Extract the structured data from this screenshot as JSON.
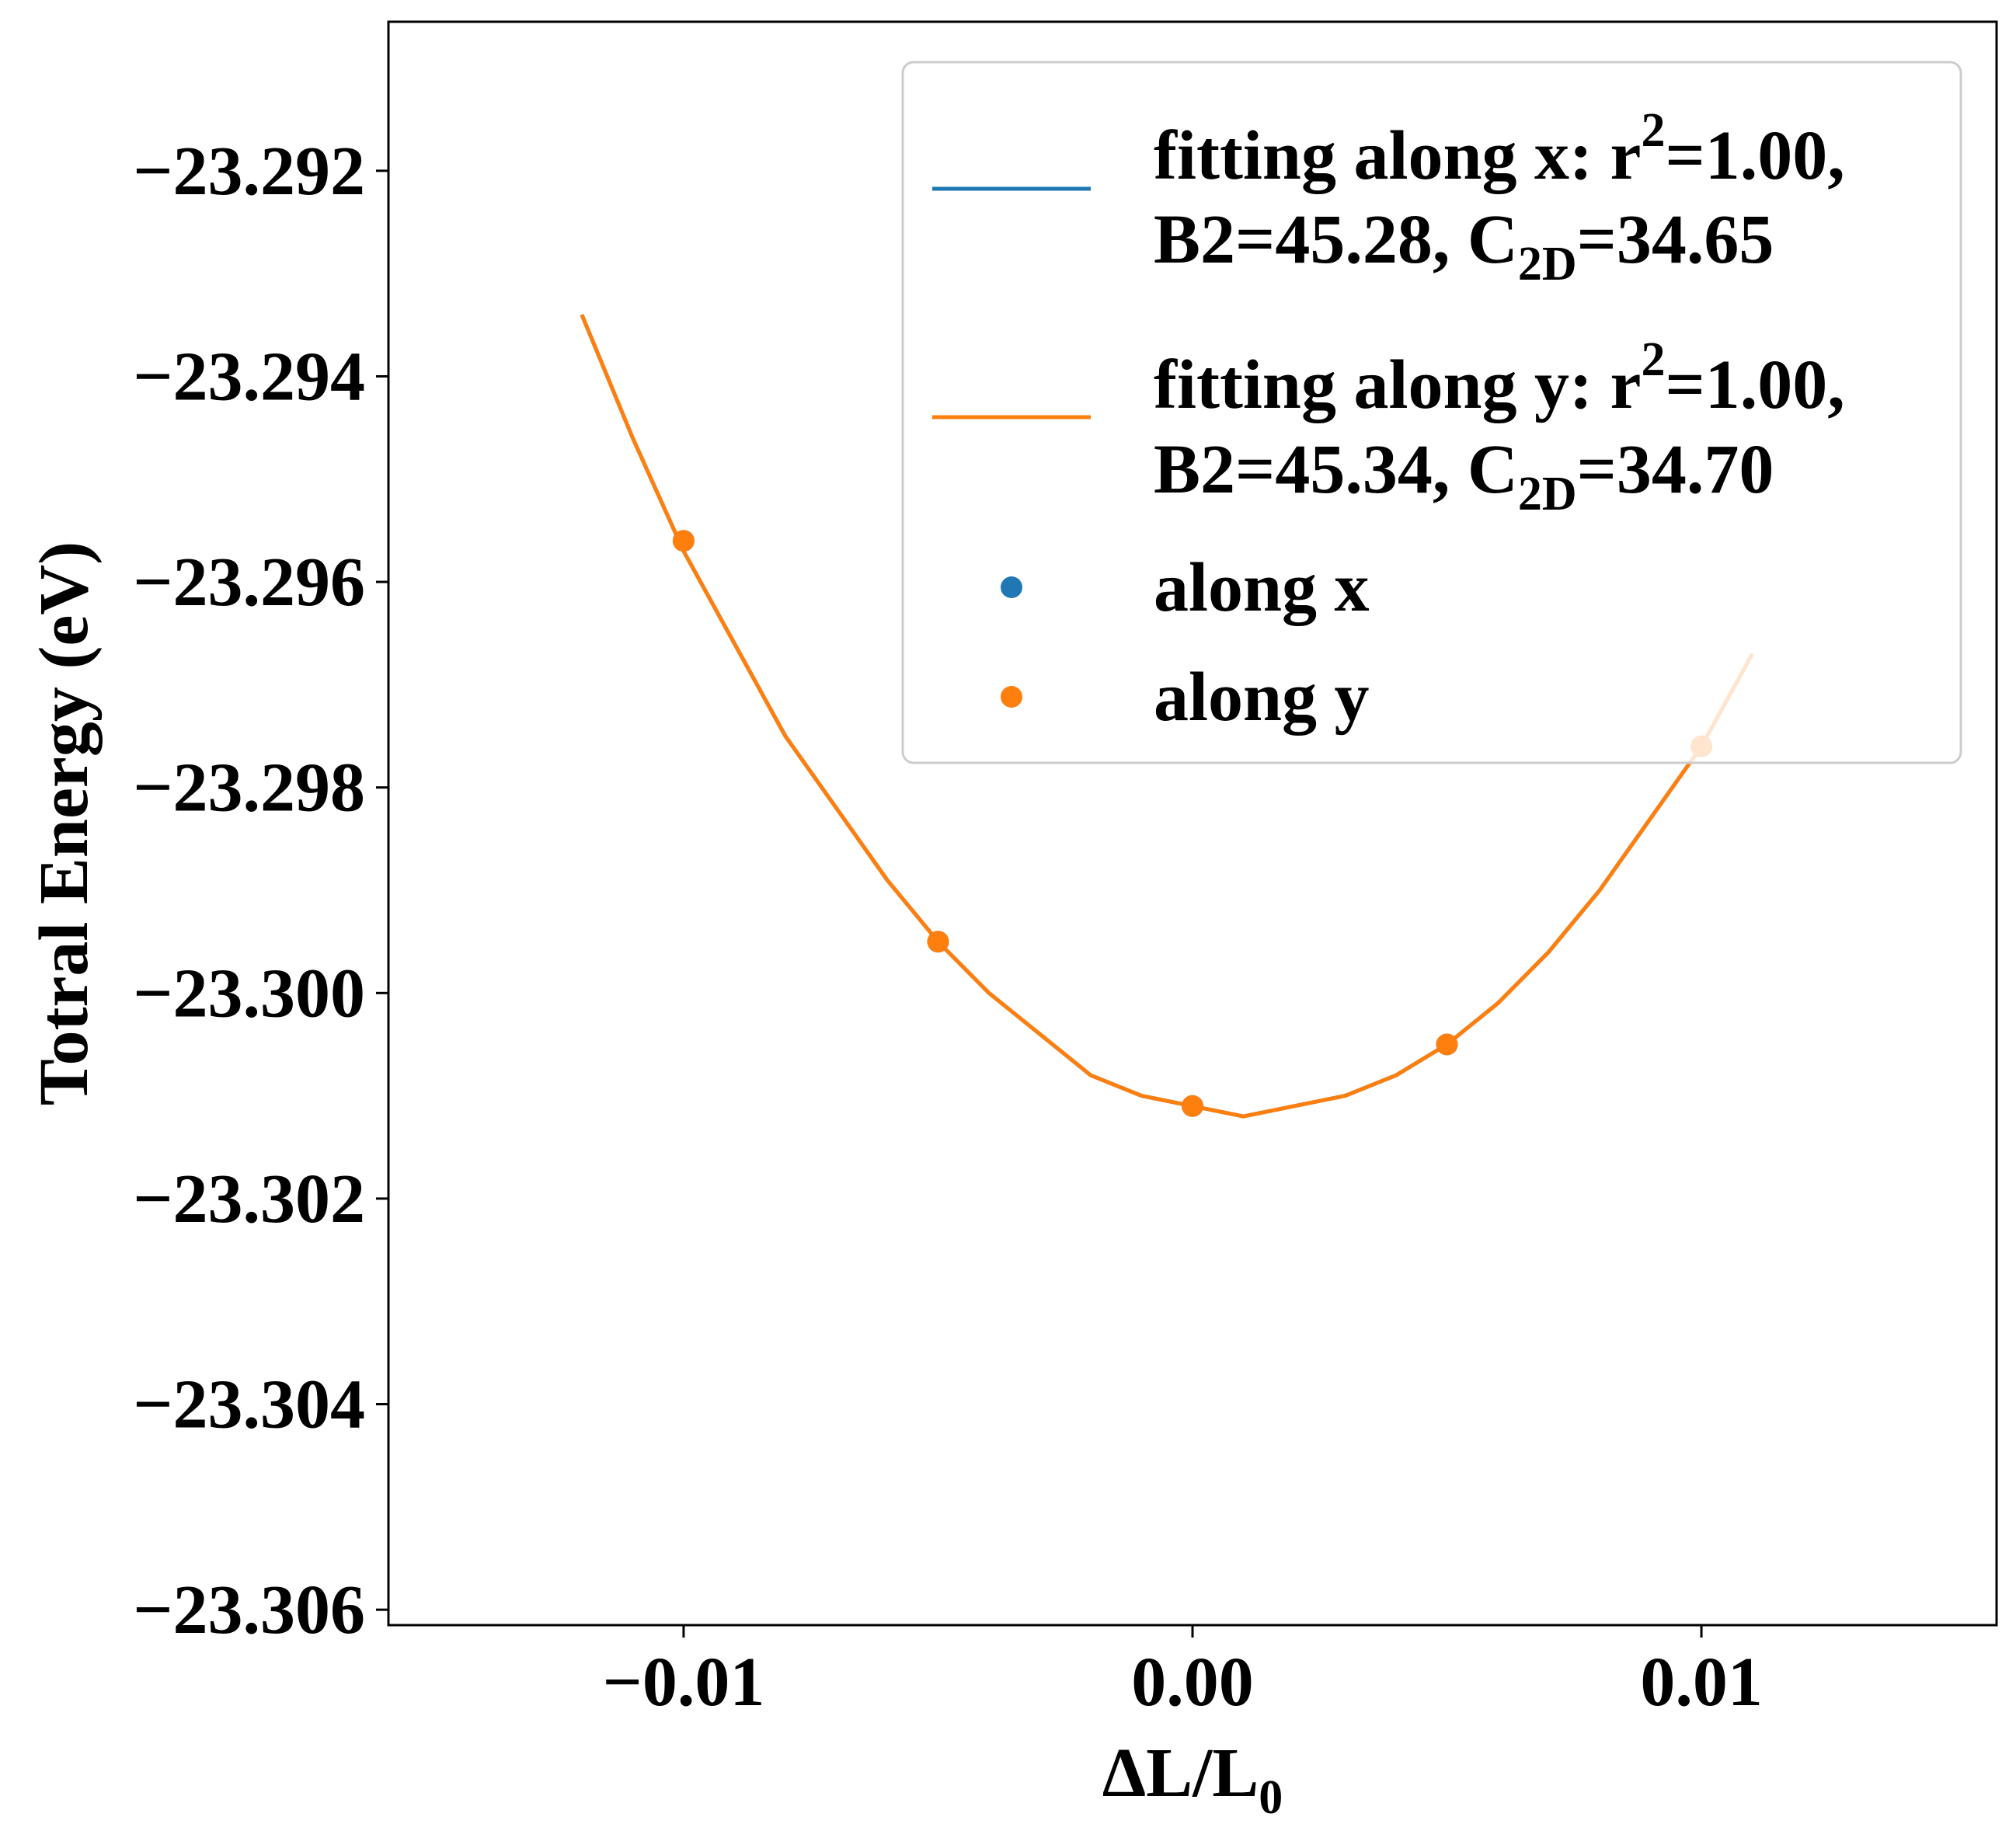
{
  "chart_data": {
    "type": "line",
    "xlabel": "ΔL/L",
    "xlabel_sub": "0",
    "ylabel": "Totral Energy (eV)",
    "xlim": [
      -0.0158,
      0.0158
    ],
    "ylim": [
      -23.30615,
      -23.29055
    ],
    "xticks": [
      -0.01,
      0.0,
      0.01
    ],
    "xtick_labels": [
      "−0.01",
      "0.00",
      "0.01"
    ],
    "yticks": [
      -23.292,
      -23.294,
      -23.296,
      -23.298,
      -23.3,
      -23.302,
      -23.304,
      -23.306
    ],
    "ytick_labels": [
      "−23.292",
      "−23.294",
      "−23.296",
      "−23.298",
      "−23.300",
      "−23.302",
      "−23.304",
      "−23.306"
    ],
    "grid": false,
    "legend_position": "top-right",
    "fit_curve": {
      "x": [
        -0.012,
        -0.011,
        -0.01,
        -0.009,
        -0.008,
        -0.007,
        -0.006,
        -0.005,
        -0.004,
        -0.003,
        -0.002,
        -0.001,
        0.0,
        0.001,
        0.002,
        0.003,
        0.004,
        0.005,
        0.006,
        0.007,
        0.008,
        0.009,
        0.01,
        0.011
      ],
      "y": [
        -23.2934,
        -23.2946,
        -23.2957,
        -23.2966,
        -23.2975,
        -23.2982,
        -23.2989,
        -23.2995,
        -23.3,
        -23.3004,
        -23.3008,
        -23.301,
        -23.3011,
        -23.3012,
        -23.3011,
        -23.301,
        -23.3008,
        -23.3005,
        -23.3001,
        -23.2996,
        -23.299,
        -23.2983,
        -23.2976,
        -23.2967
      ]
    },
    "series": [
      {
        "name": "fitting along x: r",
        "sup": "2",
        "name_tail": "=1.00,",
        "line2_a": "B2=45.28, C",
        "line2_sub": "2D",
        "line2_b": "=34.65",
        "kind": "line",
        "color": "#1f77b4"
      },
      {
        "name": "fitting along y: r",
        "sup": "2",
        "name_tail": "=1.00,",
        "line2_a": "B2=45.34, C",
        "line2_sub": "2D",
        "line2_b": "=34.70",
        "kind": "line",
        "color": "#ff7f0e"
      },
      {
        "name": "along x",
        "kind": "scatter",
        "color": "#1f77b4",
        "x": [
          -0.01,
          -0.005,
          0.0,
          0.005,
          0.01
        ],
        "y": [
          -23.2956,
          -23.2995,
          -23.3011,
          -23.3005,
          -23.2976
        ]
      },
      {
        "name": "along y",
        "kind": "scatter",
        "color": "#ff7f0e",
        "x": [
          -0.01,
          -0.005,
          0.0,
          0.005,
          0.01
        ],
        "y": [
          -23.2956,
          -23.2995,
          -23.3011,
          -23.3005,
          -23.2976
        ]
      }
    ]
  }
}
